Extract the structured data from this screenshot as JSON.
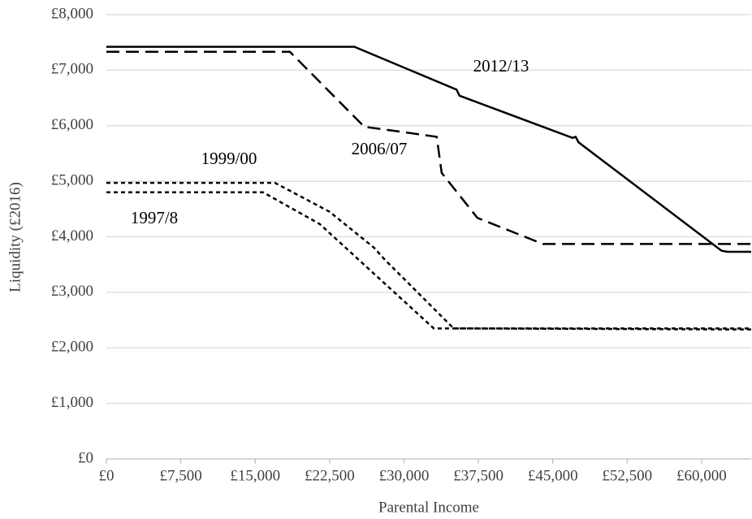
{
  "chart_data": {
    "type": "line",
    "ylabel": "Liquidity (£2016)",
    "xlabel": "Parental Income",
    "xlim": [
      0,
      65000
    ],
    "ylim": [
      0,
      8000
    ],
    "xticks": [
      {
        "value": 0,
        "label": "£0"
      },
      {
        "value": 7500,
        "label": "£7,500"
      },
      {
        "value": 15000,
        "label": "£15,000"
      },
      {
        "value": 22500,
        "label": "£22,500"
      },
      {
        "value": 30000,
        "label": "£30,000"
      },
      {
        "value": 37500,
        "label": "£37,500"
      },
      {
        "value": 45000,
        "label": "£45,000"
      },
      {
        "value": 52500,
        "label": "£52,500"
      },
      {
        "value": 60000,
        "label": "£60,000"
      }
    ],
    "yticks": [
      {
        "value": 0,
        "label": "£0"
      },
      {
        "value": 1000,
        "label": "£1,000"
      },
      {
        "value": 2000,
        "label": "£2,000"
      },
      {
        "value": 3000,
        "label": "£3,000"
      },
      {
        "value": 4000,
        "label": "£4,000"
      },
      {
        "value": 5000,
        "label": "£5,000"
      },
      {
        "value": 6000,
        "label": "£6,000"
      },
      {
        "value": 7000,
        "label": "£7,000"
      },
      {
        "value": 8000,
        "label": "£8,000"
      }
    ],
    "grid": true,
    "series": [
      {
        "name": "2012/13",
        "color": "#000000",
        "style": "solid",
        "x": [
          0,
          25000,
          35300,
          35600,
          47000,
          47300,
          47600,
          62000,
          62600,
          65000
        ],
        "values": [
          7420,
          7420,
          6650,
          6540,
          5780,
          5800,
          5700,
          3750,
          3730,
          3730
        ]
      },
      {
        "name": "2006/07",
        "color": "#000000",
        "style": "dashed",
        "x": [
          0,
          18500,
          26000,
          28500,
          33300,
          33800,
          37400,
          44000,
          65000
        ],
        "values": [
          7330,
          7330,
          5980,
          5920,
          5800,
          5150,
          4340,
          3870,
          3870
        ]
      },
      {
        "name": "1999/00",
        "color": "#000000",
        "style": "dotted",
        "x": [
          0,
          17000,
          22500,
          27000,
          28000,
          35000,
          65000
        ],
        "values": [
          4970,
          4970,
          4450,
          3800,
          3600,
          2350,
          2330
        ]
      },
      {
        "name": "1997/8",
        "color": "#000000",
        "style": "dotted",
        "x": [
          0,
          15800,
          21500,
          33000,
          65000
        ],
        "values": [
          4800,
          4800,
          4230,
          2350,
          2350
        ]
      }
    ]
  }
}
